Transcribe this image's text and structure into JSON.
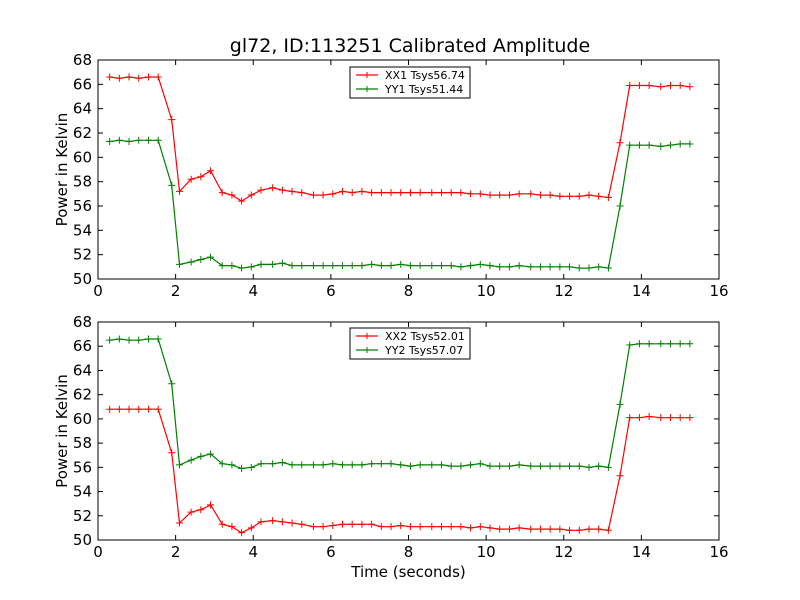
{
  "figure_title": "gl72, ID:113251 Calibrated Amplitude",
  "chart_data": [
    {
      "type": "line",
      "title": "gl72, ID:113251 Calibrated Amplitude",
      "xlabel": "",
      "ylabel": "Power in Kelvin",
      "xlim": [
        0,
        16
      ],
      "ylim": [
        50,
        68
      ],
      "xticks": [
        "0",
        "2",
        "4",
        "6",
        "8",
        "10",
        "12",
        "14",
        "16"
      ],
      "yticks": [
        "50",
        "52",
        "54",
        "56",
        "58",
        "60",
        "62",
        "64",
        "66",
        "68"
      ],
      "grid": false,
      "legend": "top-center",
      "x": [
        0.3,
        0.55,
        0.8,
        1.05,
        1.3,
        1.55,
        1.9,
        2.1,
        2.4,
        2.65,
        2.9,
        3.2,
        3.45,
        3.7,
        3.95,
        4.2,
        4.5,
        4.75,
        5.0,
        5.25,
        5.55,
        5.8,
        6.05,
        6.3,
        6.55,
        6.8,
        7.05,
        7.3,
        7.55,
        7.8,
        8.05,
        8.3,
        8.6,
        8.85,
        9.1,
        9.35,
        9.6,
        9.85,
        10.1,
        10.35,
        10.6,
        10.85,
        11.15,
        11.4,
        11.65,
        11.9,
        12.15,
        12.4,
        12.65,
        12.9,
        13.15,
        13.45,
        13.7,
        13.95,
        14.2,
        14.5,
        14.75,
        15.0,
        15.25
      ],
      "series": [
        {
          "name": "XX1 Tsys56.74",
          "color": "#ff0000",
          "values": [
            66.6,
            66.5,
            66.6,
            66.5,
            66.6,
            66.6,
            63.1,
            57.2,
            58.2,
            58.4,
            58.9,
            57.1,
            56.9,
            56.4,
            56.9,
            57.3,
            57.5,
            57.3,
            57.2,
            57.1,
            56.9,
            56.9,
            57.0,
            57.2,
            57.1,
            57.2,
            57.1,
            57.1,
            57.1,
            57.1,
            57.1,
            57.1,
            57.1,
            57.1,
            57.1,
            57.1,
            57.0,
            57.0,
            56.9,
            56.9,
            56.9,
            57.0,
            57.0,
            56.9,
            56.9,
            56.8,
            56.8,
            56.8,
            56.9,
            56.8,
            56.7,
            61.2,
            65.9,
            65.9,
            65.9,
            65.8,
            65.9,
            65.9,
            65.8
          ]
        },
        {
          "name": "YY1 Tsys51.44",
          "color": "#008000",
          "values": [
            61.3,
            61.4,
            61.3,
            61.4,
            61.4,
            61.4,
            57.7,
            51.2,
            51.4,
            51.6,
            51.8,
            51.1,
            51.1,
            50.9,
            51.0,
            51.2,
            51.2,
            51.3,
            51.1,
            51.1,
            51.1,
            51.1,
            51.1,
            51.1,
            51.1,
            51.1,
            51.2,
            51.1,
            51.1,
            51.2,
            51.1,
            51.1,
            51.1,
            51.1,
            51.1,
            51.0,
            51.1,
            51.2,
            51.1,
            51.0,
            51.0,
            51.1,
            51.0,
            51.0,
            51.0,
            51.0,
            51.0,
            50.9,
            50.9,
            51.0,
            50.9,
            56.0,
            61.0,
            61.0,
            61.0,
            60.9,
            61.0,
            61.1,
            61.1
          ]
        }
      ]
    },
    {
      "type": "line",
      "title": "",
      "xlabel": "Time (seconds)",
      "ylabel": "Power in Kelvin",
      "xlim": [
        0,
        16
      ],
      "ylim": [
        50,
        68
      ],
      "xticks": [
        "0",
        "2",
        "4",
        "6",
        "8",
        "10",
        "12",
        "14",
        "16"
      ],
      "yticks": [
        "50",
        "52",
        "54",
        "56",
        "58",
        "60",
        "62",
        "64",
        "66",
        "68"
      ],
      "grid": false,
      "legend": "top-center",
      "x": [
        0.3,
        0.55,
        0.8,
        1.05,
        1.3,
        1.55,
        1.9,
        2.1,
        2.4,
        2.65,
        2.9,
        3.2,
        3.45,
        3.7,
        3.95,
        4.2,
        4.5,
        4.75,
        5.0,
        5.25,
        5.55,
        5.8,
        6.05,
        6.3,
        6.55,
        6.8,
        7.05,
        7.3,
        7.55,
        7.8,
        8.05,
        8.3,
        8.6,
        8.85,
        9.1,
        9.35,
        9.6,
        9.85,
        10.1,
        10.35,
        10.6,
        10.85,
        11.15,
        11.4,
        11.65,
        11.9,
        12.15,
        12.4,
        12.65,
        12.9,
        13.15,
        13.45,
        13.7,
        13.95,
        14.2,
        14.5,
        14.75,
        15.0,
        15.25
      ],
      "series": [
        {
          "name": "XX2 Tsys52.01",
          "color": "#ff0000",
          "values": [
            60.8,
            60.8,
            60.8,
            60.8,
            60.8,
            60.8,
            57.2,
            51.4,
            52.3,
            52.5,
            52.9,
            51.3,
            51.1,
            50.6,
            51.0,
            51.5,
            51.6,
            51.5,
            51.4,
            51.3,
            51.1,
            51.1,
            51.2,
            51.3,
            51.3,
            51.3,
            51.3,
            51.1,
            51.1,
            51.2,
            51.1,
            51.1,
            51.1,
            51.1,
            51.1,
            51.1,
            51.0,
            51.1,
            51.0,
            50.9,
            50.9,
            51.0,
            50.9,
            50.9,
            50.9,
            50.9,
            50.8,
            50.8,
            50.9,
            50.9,
            50.8,
            55.3,
            60.1,
            60.1,
            60.2,
            60.1,
            60.1,
            60.1,
            60.1
          ]
        },
        {
          "name": "YY2 Tsys57.07",
          "color": "#008000",
          "values": [
            66.5,
            66.6,
            66.5,
            66.5,
            66.6,
            66.6,
            62.9,
            56.2,
            56.6,
            56.9,
            57.1,
            56.3,
            56.2,
            55.9,
            56.0,
            56.3,
            56.3,
            56.4,
            56.2,
            56.2,
            56.2,
            56.2,
            56.3,
            56.2,
            56.2,
            56.2,
            56.3,
            56.3,
            56.3,
            56.2,
            56.1,
            56.2,
            56.2,
            56.2,
            56.1,
            56.1,
            56.2,
            56.3,
            56.1,
            56.1,
            56.1,
            56.2,
            56.1,
            56.1,
            56.1,
            56.1,
            56.1,
            56.1,
            56.0,
            56.1,
            56.0,
            61.2,
            66.1,
            66.2,
            66.2,
            66.2,
            66.2,
            66.2,
            66.2
          ]
        }
      ]
    }
  ]
}
